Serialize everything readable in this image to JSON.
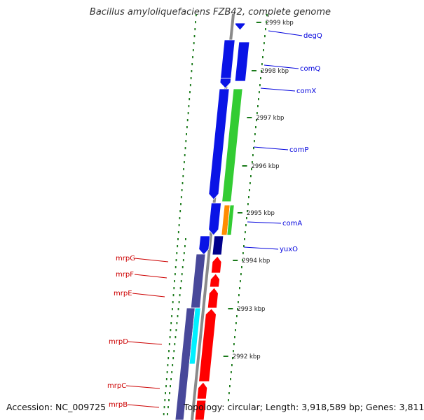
{
  "title": "Bacillus amyloliquefaciens FZB42, complete genome",
  "footer": {
    "accession": "Accession: NC_009725",
    "topology": "Topology: circular; Length: 3,918,589 bp; Genes: 3,811"
  },
  "colors": {
    "backbone": "#8a8a8a",
    "dots": "#1a7a1a",
    "forward_label": "#0000dd",
    "reverse_label": "#cc0000",
    "blue": "#0a14e6",
    "green": "#33cc33",
    "orange": "#ff8c00",
    "navy": "#00008b",
    "red": "#ff0000",
    "slate": "#48489a",
    "cyan": "#00f0ff"
  },
  "ticks": [
    "2999 kbp",
    "2998 kbp",
    "2997 kbp",
    "2996 kbp",
    "2995 kbp",
    "2994 kbp",
    "2993 kbp",
    "2992 kbp"
  ],
  "genes_right": [
    "degQ",
    "comQ",
    "comX",
    "comP",
    "comA",
    "yuxO"
  ],
  "genes_left": [
    "mrpG",
    "mrpF",
    "mrpE",
    "mrpD",
    "mrpC",
    "mrpB"
  ]
}
